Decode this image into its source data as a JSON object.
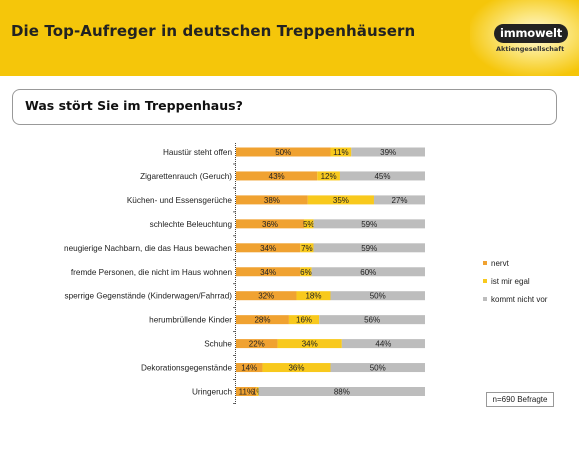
{
  "header": {
    "title": "Die Top-Aufreger in deutschen Treppenhäusern"
  },
  "logo": {
    "name": "immowelt",
    "subtitle": "Aktiengesellschaft"
  },
  "question": {
    "text": "Was stört Sie im Treppenhaus?"
  },
  "sample": {
    "text": "n=690 Befragte"
  },
  "colors": {
    "nervt": "#f0a231",
    "egal": "#f8c91d",
    "kommt_nicht_vor": "#bdbdbd",
    "header": "#f5c60a"
  },
  "chart_data": {
    "type": "bar",
    "orientation": "horizontal",
    "stacked": true,
    "unit": "%",
    "xlim": [
      0,
      100
    ],
    "categories": [
      "Haustür steht offen",
      "Zigarettenrauch (Geruch)",
      "Küchen- und Essensgerüche",
      "schlechte Beleuchtung",
      "neugierige Nachbarn, die das Haus bewachen",
      "fremde Personen, die nicht im Haus wohnen",
      "sperrige Gegenstände (Kinderwagen/Fahrrad)",
      "herumbrüllende Kinder",
      "Schuhe",
      "Dekorationsgegenstände",
      "Uringeruch"
    ],
    "series": [
      {
        "name": "nervt",
        "color": "#f0a231",
        "values": [
          50,
          43,
          38,
          36,
          34,
          34,
          32,
          28,
          22,
          14,
          11
        ],
        "labels": [
          "50%",
          "43%",
          "38%",
          "36%",
          "34%",
          "34%",
          "32%",
          "28%",
          "22%",
          "14%",
          "11%"
        ]
      },
      {
        "name": "ist mir egal",
        "color": "#f8c91d",
        "values": [
          11,
          12,
          35,
          5,
          7,
          6,
          18,
          16,
          34,
          36,
          1
        ],
        "labels": [
          "11%",
          "12%",
          "35%",
          "5%",
          "7%",
          "6%",
          "18%",
          "16%",
          "34%",
          "36%",
          "1%"
        ]
      },
      {
        "name": "kommt nicht vor",
        "color": "#bdbdbd",
        "values": [
          39,
          45,
          27,
          59,
          59,
          60,
          50,
          56,
          44,
          50,
          88
        ],
        "labels": [
          "39%",
          "45%",
          "27%",
          "59%",
          "59%",
          "60%",
          "50%",
          "56%",
          "44%",
          "50%",
          "88%"
        ]
      }
    ],
    "legend_position": "right"
  }
}
